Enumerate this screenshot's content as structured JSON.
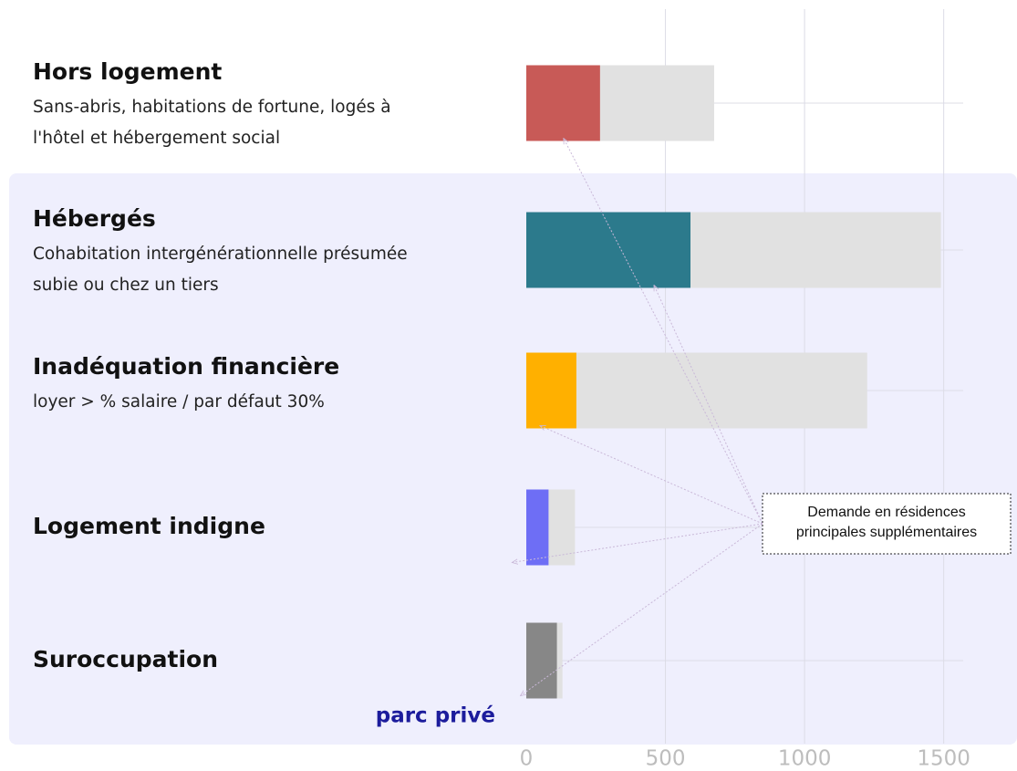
{
  "chart_data": {
    "type": "bar",
    "orientation": "horizontal",
    "categories": [
      "Hors logement",
      "Hébergés",
      "Inadéquation financière",
      "Logement indigne",
      "Suroccupation"
    ],
    "descriptions": [
      [
        "Sans-abris, habitations de fortune, logés à",
        "l'hôtel et hébergement social"
      ],
      [
        "Cohabitation intergénérationnelle présumée",
        "subie ou chez un tiers"
      ],
      [
        "loyer > % salaire / par défaut 30%"
      ],
      null,
      null
    ],
    "series": [
      {
        "color": "#e1e1e1",
        "values": [
          675,
          1490,
          1225,
          175,
          130
        ]
      },
      {
        "colors": [
          "#c85a57",
          "#2c7a8c",
          "#ffb000",
          "#6e6ef5",
          "#878787"
        ],
        "values": [
          265,
          590,
          180,
          80,
          110
        ]
      }
    ],
    "xlim": [
      0,
      1570
    ],
    "xticks": [
      0,
      500,
      1000,
      1500
    ],
    "grid": true,
    "annotation": [
      "Demande en résidences",
      "principales supplémentaires"
    ],
    "footer_label": "parc privé"
  }
}
